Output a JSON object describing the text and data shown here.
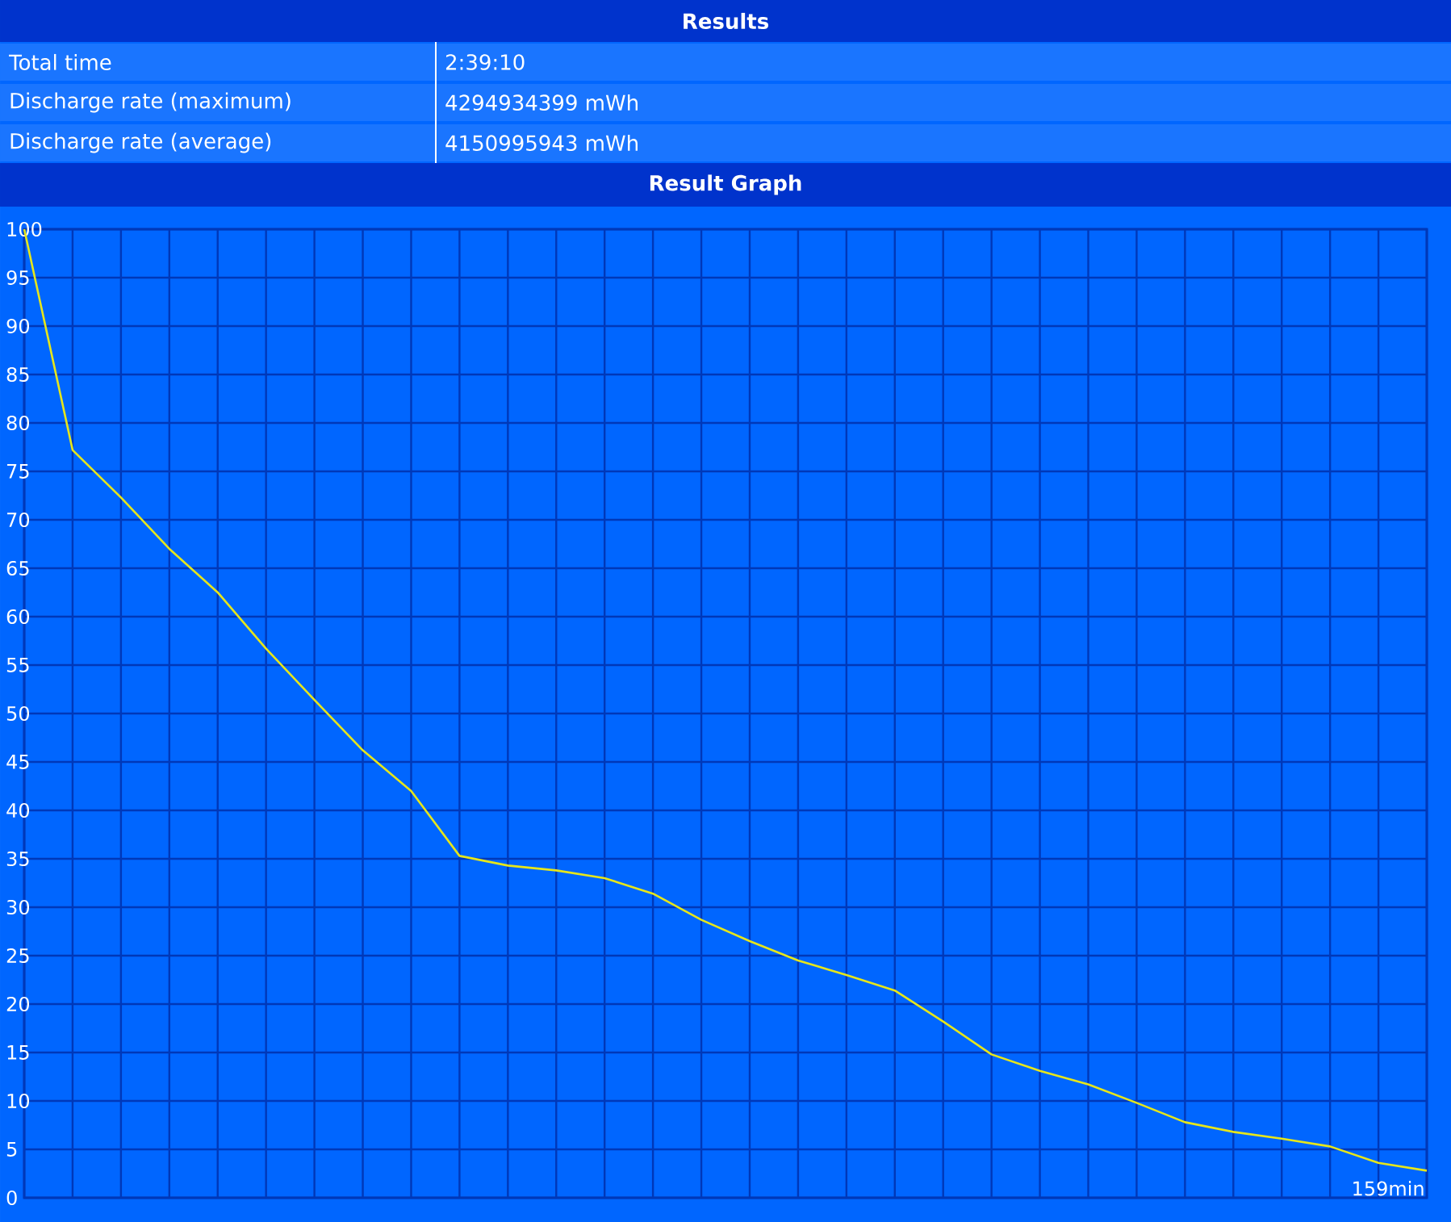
{
  "chart_data": {
    "type": "line",
    "title": "Result Graph",
    "annotations": [
      "Results",
      "Total time",
      "2:39:10",
      "Discharge rate (maximum)",
      "4294934399 mWh",
      "Discharge rate (average)",
      "4150995943 mWh",
      "159min"
    ],
    "categories": [
      null,
      null,
      null,
      null,
      null,
      null,
      null,
      null,
      null,
      null,
      null,
      null,
      null,
      null,
      null,
      null,
      null,
      null,
      null,
      null,
      null,
      null,
      null,
      null,
      null,
      null,
      null,
      null,
      null,
      null
    ],
    "series": [
      {
        "color": "#e6e61a",
        "values": [
          100,
          77.2,
          72.3,
          67,
          62.5,
          56.7,
          51.4,
          46.2,
          42,
          35.3,
          34.3,
          33.8,
          33,
          31.4,
          28.7,
          26.5,
          24.5,
          23,
          21.4,
          18.2,
          14.8,
          13.1,
          11.7,
          9.8,
          7.8,
          6.8,
          6.1,
          5.3,
          3.6,
          2.8
        ]
      }
    ],
    "ylim": [
      0,
      100
    ],
    "yticks": [
      0,
      5,
      10,
      15,
      20,
      25,
      30,
      35,
      40,
      45,
      50,
      55,
      60,
      65,
      70,
      75,
      80,
      85,
      90,
      95,
      100
    ],
    "grid": true
  }
}
